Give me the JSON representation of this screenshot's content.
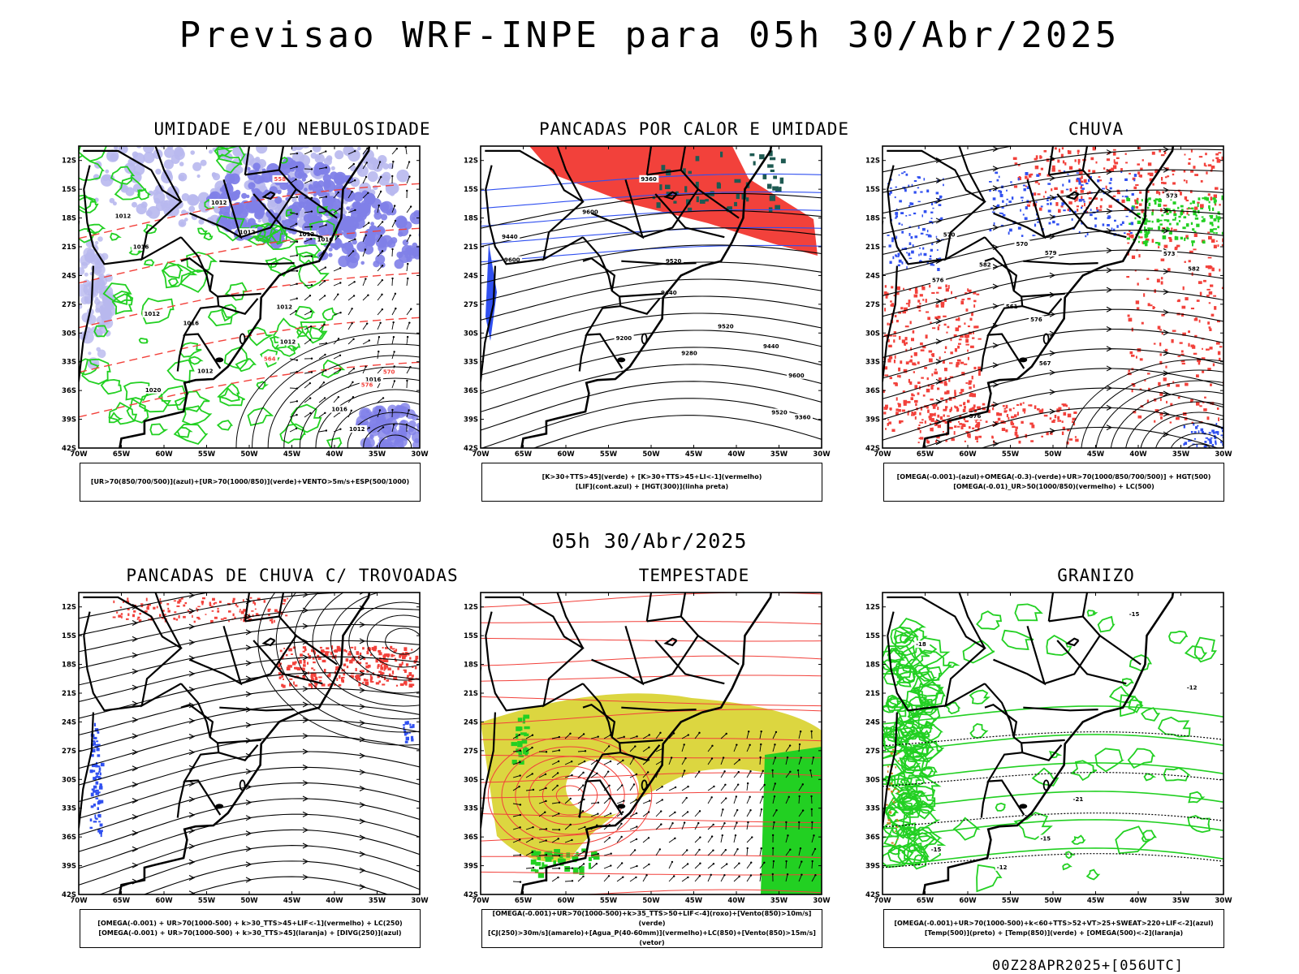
{
  "title": "Previsao WRF-INPE  para 05h 30/Abr/2025",
  "mid_title": "05h 30/Abr/2025",
  "footer": "00Z28APR2025+[056UTC]",
  "axes": {
    "lat_labels": [
      "12S",
      "15S",
      "18S",
      "21S",
      "24S",
      "27S",
      "30S",
      "33S",
      "36S",
      "39S",
      "42S"
    ],
    "lon_labels": [
      "70W",
      "65W",
      "60W",
      "55W",
      "50W",
      "45W",
      "40W",
      "35W",
      "30W"
    ]
  },
  "colors": {
    "red": "#f2413b",
    "blue": "#3050f0",
    "green": "#22d022",
    "yellow": "#dcd640",
    "purple": "#7f7fe8",
    "lilac": "#b8b8ee",
    "darkteal": "#1e5a52"
  },
  "panels": [
    {
      "title": "UMIDADE E/OU NEBULOSIDADE",
      "legend": [
        "[UR>70(850/700/500)](azul)+[UR>70(1000/850)](verde)+VENTO>5m/s+ESP(500/1000)"
      ]
    },
    {
      "title": "PANCADAS POR CALOR E UMIDADE",
      "legend": [
        "[K>30+TTS>45](verde)  +  [K>30+TTS>45+LI<-1](vermelho)",
        "[LIF](cont.azul)  +  [HGT(300)](linha preta)"
      ]
    },
    {
      "title": "CHUVA",
      "legend": [
        "[OMEGA(-0.001)-(azul)+OMEGA(-0.3)-(verde)+UR>70(1000/850/700/500)]  +  HGT(500)",
        "[OMEGA(-0.01)_UR>50(1000/850)(vermelho)  +  LC(500)"
      ]
    },
    {
      "title": "PANCADAS DE CHUVA C/ TROVOADAS",
      "legend": [
        "[OMEGA(-0.001)  +  UR>70(1000-500)  +  k>30_TTS>45+LIF<-1](vermelho)  +  LC(250)",
        "[OMEGA(-0.001)  +  UR>70(1000-500)  +  k>30_TTS>45](laranja)  +  [DIVG(250)](azul)"
      ]
    },
    {
      "title": "TEMPESTADE",
      "legend": [
        "[OMEGA(-0.001)+UR>70(1000-500)+k>35_TTS>50+LIF<-4](roxo)+[Vento(850)>10m/s](verde)",
        "[CJ(250)>30m/s](amarelo)+[Agua_P(40-60mm)](vermelho)+LC(850)+[Vento(850)>15m/s](vetor)"
      ]
    },
    {
      "title": "GRANIZO",
      "legend": [
        "[OMEGA(-0.001)+UR>70(1000-500)+k<60+TTS>52+VT>25+SWEAT>220+LIF<-2](azul)",
        "[Temp(500)](preto)  +  [Temp(850)](verde)  +  [OMEGA(500)<-2](laranja)"
      ]
    }
  ],
  "contour_labels": {
    "p1": [
      "1012",
      "1012",
      "1012",
      "1012",
      "1016",
      "1016",
      "1020",
      "1016",
      "1016",
      "1012",
      "1012",
      "1016",
      "1012",
      "1012",
      "1012",
      "576",
      "570",
      "564",
      "558"
    ],
    "p2": [
      "9600",
      "9520",
      "9600",
      "9440",
      "9520",
      "9440",
      "9360",
      "9360",
      "9280",
      "9200",
      "9440",
      "9520",
      "9600"
    ],
    "p3": [
      "582",
      "576",
      "576",
      "573",
      "570",
      "567",
      "576",
      "573",
      "570",
      "561",
      "582",
      "579"
    ],
    "p6": [
      "-12",
      "-12",
      "-15",
      "-15",
      "-15",
      "-18",
      "-21"
    ]
  }
}
